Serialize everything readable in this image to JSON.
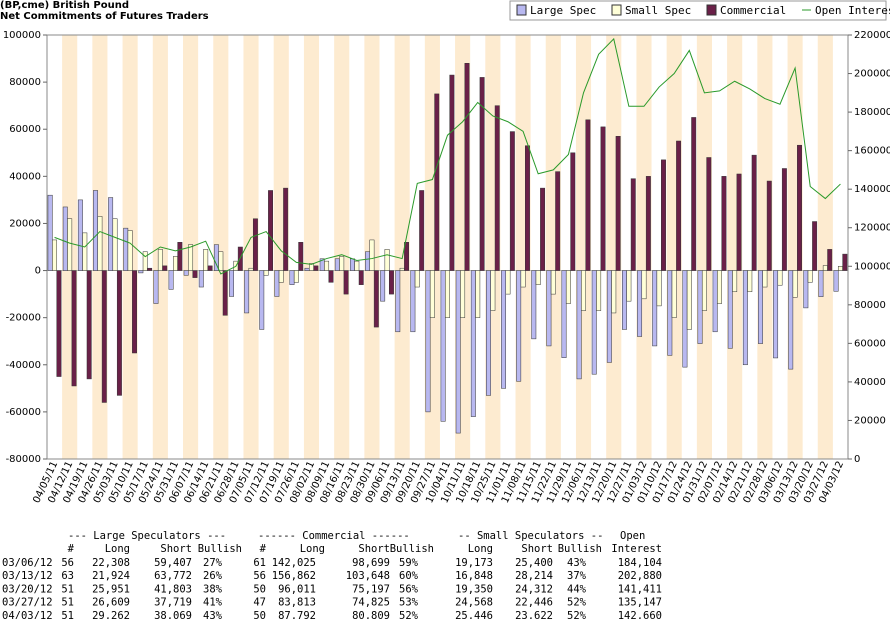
{
  "chart_data": {
    "type": "bar",
    "title": "(BP,cme) British Pound",
    "subtitle": "Net Commitments of Futures Traders",
    "categories": [
      "04/05/11",
      "04/12/11",
      "04/19/11",
      "04/26/11",
      "05/03/11",
      "05/10/11",
      "05/17/11",
      "05/24/11",
      "05/31/11",
      "06/07/11",
      "06/14/11",
      "06/21/11",
      "06/28/11",
      "07/05/11",
      "07/12/11",
      "07/19/11",
      "07/26/11",
      "08/02/11",
      "08/09/11",
      "08/16/11",
      "08/23/11",
      "08/30/11",
      "09/06/11",
      "09/13/11",
      "09/20/11",
      "09/27/11",
      "10/04/11",
      "10/11/11",
      "10/18/11",
      "10/25/11",
      "11/01/11",
      "11/08/11",
      "11/15/11",
      "11/22/11",
      "11/29/11",
      "12/06/11",
      "12/13/11",
      "12/20/11",
      "12/27/11",
      "01/03/12",
      "01/10/12",
      "01/17/12",
      "01/24/12",
      "01/31/12",
      "02/07/12",
      "02/14/12",
      "02/21/12",
      "02/28/12",
      "03/06/12",
      "03/13/12",
      "03/20/12",
      "03/27/12",
      "04/03/12"
    ],
    "series": [
      {
        "name": "Large Spec",
        "color": "#b8b8f0",
        "values": [
          32000,
          27000,
          30000,
          34000,
          31000,
          18000,
          -1000,
          -14000,
          -8000,
          -2000,
          -7000,
          11000,
          -11000,
          -18000,
          -25000,
          -11000,
          -6000,
          1000,
          5000,
          5000,
          5000,
          8000,
          -13000,
          -26000,
          -26000,
          -60000,
          -64000,
          -69000,
          -62000,
          -53000,
          -50000,
          -47000,
          -29000,
          -32000,
          -37000,
          -46000,
          -44000,
          -39000,
          -25000,
          -28000,
          -32000,
          -36000,
          -41000,
          -31000,
          -26000,
          -33000,
          -40000,
          -31000,
          -37099,
          -41848,
          -15852,
          -11110,
          -8807
        ]
      },
      {
        "name": "Small Spec",
        "color": "#ffffd8",
        "values": [
          13000,
          22000,
          16000,
          23000,
          22000,
          17000,
          8000,
          9000,
          6000,
          11000,
          9000,
          8000,
          4000,
          1000,
          -2000,
          -5000,
          -5000,
          3000,
          4000,
          6000,
          4000,
          13000,
          9000,
          1000,
          -7000,
          -20000,
          -20000,
          -20000,
          -20000,
          -17000,
          -10000,
          -7000,
          -6000,
          -10000,
          -14000,
          -17000,
          -17000,
          -18000,
          -13000,
          -12000,
          -15000,
          -20000,
          -25000,
          -17000,
          -14000,
          -9000,
          -9000,
          -7000,
          -6227,
          -11366,
          -4962,
          2122,
          1824
        ]
      },
      {
        "name": "Commercial",
        "color": "#6a2048",
        "values": [
          -45000,
          -49000,
          -46000,
          -56000,
          -53000,
          -35000,
          1000,
          2000,
          12000,
          -3000,
          2000,
          -19000,
          10000,
          22000,
          34000,
          35000,
          12000,
          2000,
          -5000,
          -10000,
          -6000,
          -24000,
          -10000,
          12000,
          34000,
          75000,
          83000,
          88000,
          82000,
          70000,
          59000,
          53000,
          35000,
          42000,
          50000,
          64000,
          61000,
          57000,
          39000,
          40000,
          47000,
          55000,
          65000,
          48000,
          40000,
          41000,
          49000,
          38000,
          43326,
          53214,
          20814,
          8988,
          6983
        ]
      },
      {
        "name": "Open Interest",
        "color": "#2a9a2a",
        "axis": "y2",
        "values": [
          115000,
          112000,
          110000,
          118000,
          115000,
          112000,
          105000,
          110000,
          108000,
          110000,
          113000,
          96000,
          100000,
          115000,
          118000,
          108000,
          102000,
          101000,
          104000,
          106000,
          103000,
          104000,
          106000,
          104000,
          143000,
          145000,
          168000,
          175000,
          185000,
          178000,
          175000,
          170000,
          148000,
          150000,
          158000,
          190000,
          210000,
          218000,
          183000,
          183000,
          193000,
          200000,
          212000,
          190000,
          191000,
          196000,
          192000,
          187000,
          184104,
          202880,
          141411,
          135147,
          142660
        ]
      }
    ],
    "ylim": [
      -80000,
      100000
    ],
    "yticks": [
      -80000,
      -60000,
      -40000,
      -20000,
      0,
      20000,
      40000,
      60000,
      80000,
      100000
    ],
    "y2lim": [
      0,
      220000
    ],
    "y2ticks": [
      0,
      20000,
      40000,
      60000,
      80000,
      100000,
      120000,
      140000,
      160000,
      180000,
      200000,
      220000
    ],
    "grid": false,
    "legend": "top-right"
  },
  "table": {
    "header1": [
      "--- Large Speculators ---",
      "------ Commercial ------",
      "-- Small Speculators --",
      "Open"
    ],
    "header2": [
      "#",
      "Long",
      "Short",
      "Bullish",
      "#",
      "Long",
      "Short",
      "Bullish",
      "Long",
      "Short",
      "Bullish",
      "Interest"
    ],
    "rows": [
      [
        "03/06/12",
        "56",
        "22,308",
        "59,407",
        "27%",
        "61",
        "142,025",
        "98,699",
        "59%",
        "19,173",
        "25,400",
        "43%",
        "184,104"
      ],
      [
        "03/13/12",
        "63",
        "21,924",
        "63,772",
        "26%",
        "56",
        "156,862",
        "103,648",
        "60%",
        "16,848",
        "28,214",
        "37%",
        "202,880"
      ],
      [
        "03/20/12",
        "51",
        "25,951",
        "41,803",
        "38%",
        "50",
        "96,011",
        "75,197",
        "56%",
        "19,350",
        "24,312",
        "44%",
        "141,411"
      ],
      [
        "03/27/12",
        "51",
        "26,609",
        "37,719",
        "41%",
        "47",
        "83,813",
        "74,825",
        "53%",
        "24,568",
        "22,446",
        "52%",
        "135,147"
      ],
      [
        "04/03/12",
        "51",
        "29,262",
        "38,069",
        "43%",
        "50",
        "87,792",
        "80,809",
        "52%",
        "25,446",
        "23,622",
        "52%",
        "142,660"
      ]
    ]
  }
}
